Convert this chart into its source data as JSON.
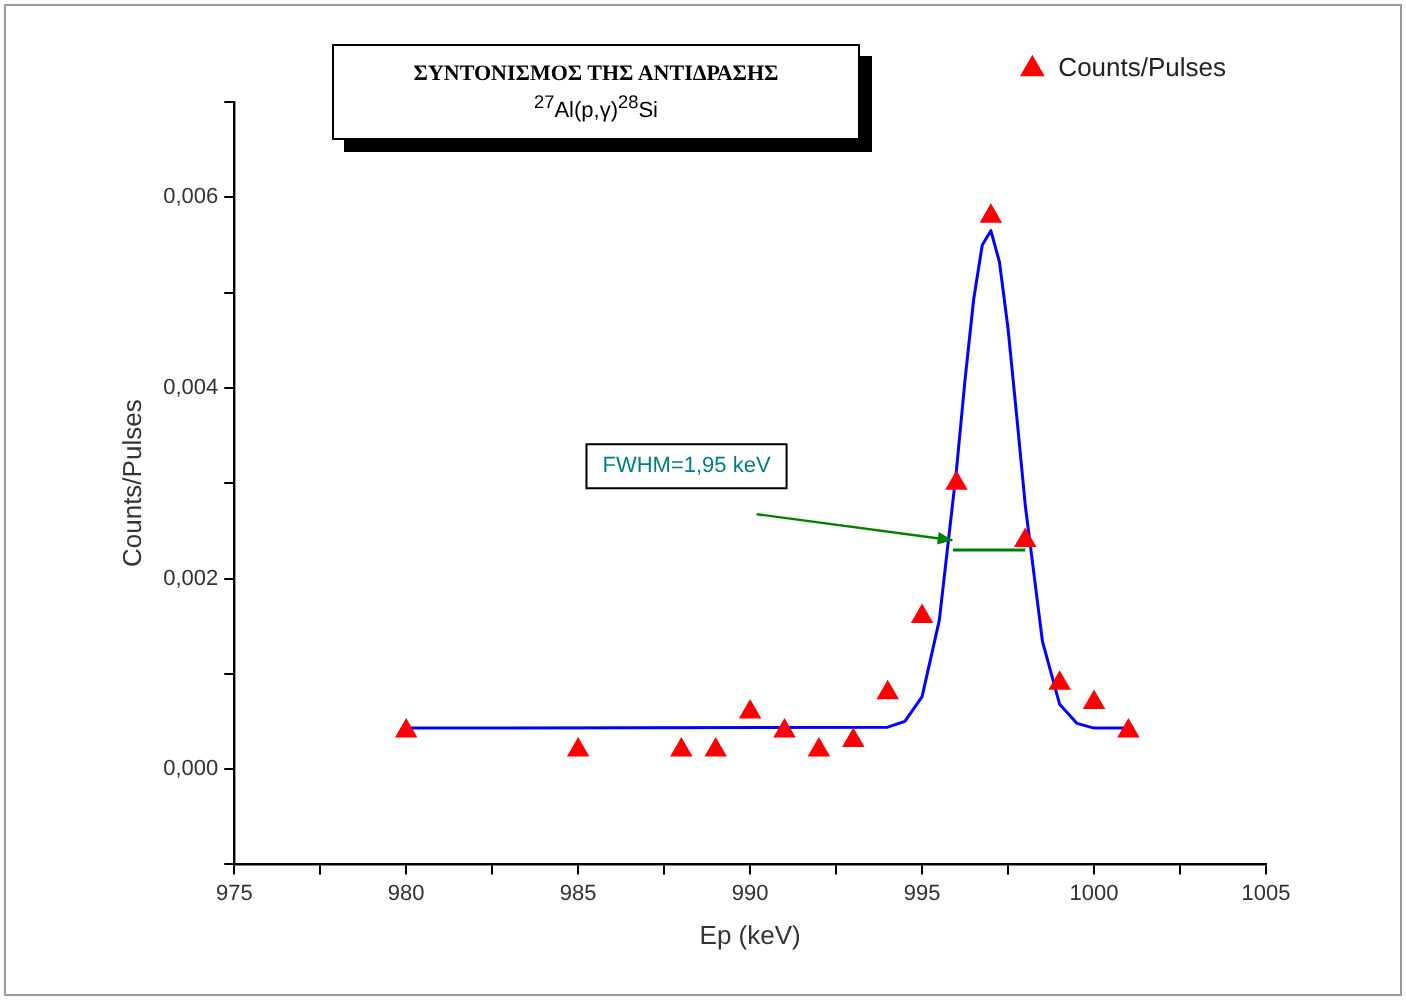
{
  "chart_data": {
    "type": "scatter",
    "title": "ΣΥΝΤΟΝΙΣΜΟΣ ΤΗΣ ΑΝΤΙΔΡΑΣΗΣ",
    "subtitle": "$^{27}$Al(p,γ)$^{28}$Si",
    "xlabel": "Ep (keV)",
    "ylabel": "Counts/Pulses",
    "xlim": [
      975,
      1005
    ],
    "xticks": [
      975,
      {
        "value": 977.5,
        "label": null
      },
      980,
      {
        "value": 982.5,
        "label": null
      },
      985,
      {
        "value": 987.5,
        "label": null
      },
      990,
      {
        "value": 992.5,
        "label": null
      },
      995,
      {
        "value": 997.5,
        "label": null
      },
      1000,
      {
        "value": 1002.5,
        "label": null
      },
      1005
    ],
    "ylim": [
      -0.001,
      0.007
    ],
    "yticks": [
      {
        "value": -0.001,
        "label": null
      },
      {
        "value": 0,
        "label": "0,000"
      },
      {
        "value": 0.001,
        "label": null
      },
      {
        "value": 0.002,
        "label": "0,002"
      },
      {
        "value": 0.003,
        "label": null
      },
      {
        "value": 0.004,
        "label": "0,004"
      },
      {
        "value": 0.005,
        "label": null
      },
      {
        "value": 0.006,
        "label": "0,006"
      },
      {
        "value": 0.007,
        "label": null
      }
    ],
    "grid": false,
    "legend": "top right",
    "annotations": [
      "FWHM=1,95 keV"
    ],
    "series": [
      {
        "name": "Counts/Pulses",
        "type": "scatter",
        "color": "#ff0000",
        "marker": "triangle",
        "x": [
          980,
          985,
          988,
          989,
          990,
          991,
          992,
          993,
          994,
          995,
          996,
          997,
          998,
          999,
          1000,
          1001
        ],
        "values": [
          0.0004,
          0.0002,
          0.0002,
          0.0002,
          0.0006,
          0.0004,
          0.0002,
          0.0003,
          0.0008,
          0.0016,
          0.003,
          0.0058,
          0.0024,
          0.0009,
          0.0007,
          0.0004
        ]
      },
      {
        "type": "line",
        "color": "#0000ff",
        "marker": "none",
        "x": [
          980,
          994,
          994.5,
          995,
          995.5,
          996,
          996.25,
          996.5,
          996.75,
          997,
          997.25,
          997.5,
          997.75,
          998,
          998.5,
          999,
          999.5,
          1000,
          1001
        ],
        "values": [
          0.00043,
          0.00044,
          0.0005,
          0.00076,
          0.00156,
          0.00314,
          0.00409,
          0.00493,
          0.0055,
          0.00565,
          0.00532,
          0.00462,
          0.00371,
          0.00277,
          0.00134,
          0.00068,
          0.00048,
          0.00043,
          0.00043
        ]
      },
      {
        "type": "line",
        "color": "#008000",
        "marker": "none",
        "x": [
          995.9,
          998
        ],
        "values": [
          0.0023,
          0.0023
        ]
      }
    ]
  }
}
